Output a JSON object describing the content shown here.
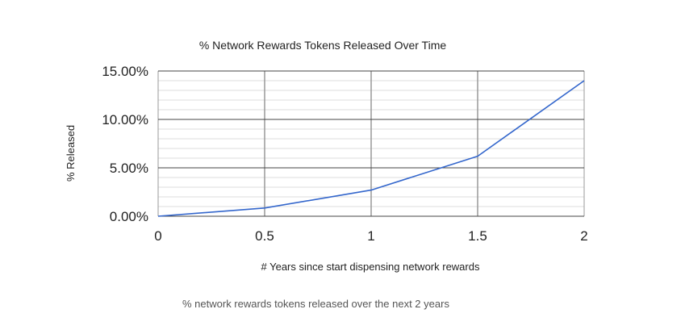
{
  "chart_data": {
    "type": "line",
    "title": "% Network Rewards Tokens Released Over Time",
    "xlabel": "# Years since start dispensing network rewards",
    "ylabel": "% Released",
    "x": [
      0,
      0.5,
      1,
      1.5,
      2
    ],
    "series": [
      {
        "values": [
          0.0,
          0.85,
          2.7,
          6.2,
          14.0
        ]
      }
    ],
    "xlim": [
      0,
      2
    ],
    "ylim": [
      0,
      15
    ],
    "x_ticks": [
      0,
      0.5,
      1,
      1.5,
      2
    ],
    "x_tick_labels": [
      "0",
      "0.5",
      "1",
      "1.5",
      "2"
    ],
    "y_ticks": [
      0,
      5,
      10,
      15
    ],
    "y_tick_labels": [
      "0.00%",
      "5.00%",
      "10.00%",
      "15.00%"
    ],
    "y_minor_step": 1,
    "grid": true,
    "legend": "none",
    "colors": {
      "line": "#3366cc",
      "major_grid": "#444444",
      "minor_grid": "#dddddd",
      "vertical_grid": "#999999"
    }
  },
  "caption": "% network rewards tokens released over the next 2 years"
}
